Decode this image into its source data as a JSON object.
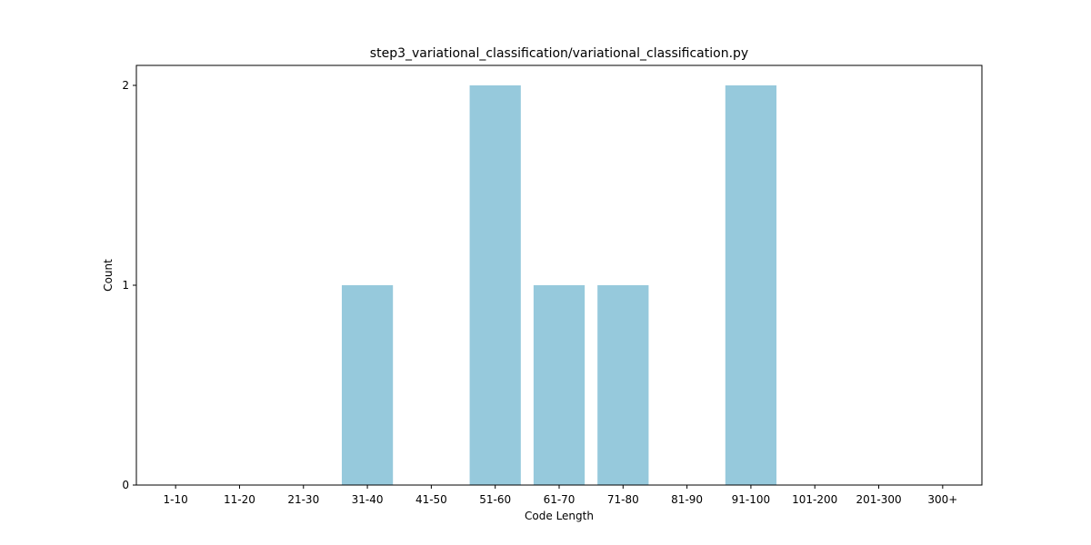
{
  "chart_data": {
    "type": "bar",
    "title": "step3_variational_classification/variational_classification.py",
    "xlabel": "Code Length",
    "ylabel": "Count",
    "categories": [
      "1-10",
      "11-20",
      "21-30",
      "31-40",
      "41-50",
      "51-60",
      "61-70",
      "71-80",
      "81-90",
      "91-100",
      "101-200",
      "201-300",
      "300+"
    ],
    "values": [
      0,
      0,
      0,
      1,
      0,
      2,
      1,
      1,
      0,
      2,
      0,
      0,
      0
    ],
    "yticks": [
      "0",
      "1",
      "2"
    ],
    "ylim": [
      0,
      2.1
    ],
    "grid": false,
    "bar_color": "#96c9dc"
  }
}
